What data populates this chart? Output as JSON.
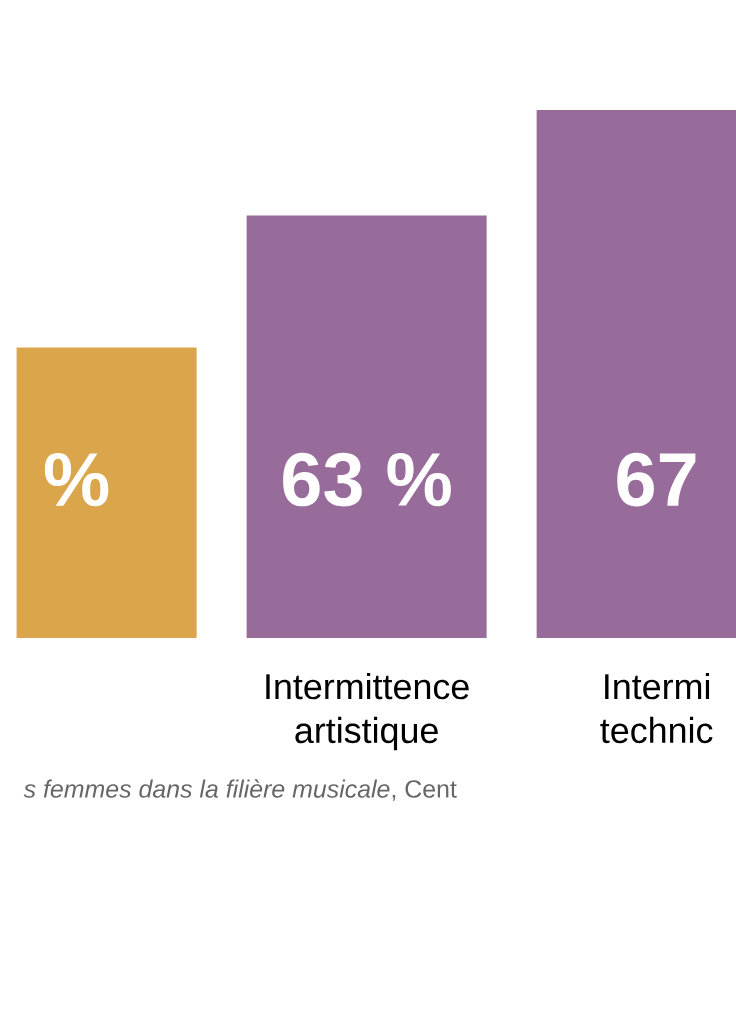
{
  "chart_data": {
    "type": "bar",
    "ylim": [
      47,
      67
    ],
    "categories": [
      null,
      "Intermittence artistique",
      "Intermi technic"
    ],
    "values": [
      58,
      63,
      67
    ],
    "colors": [
      "#dba54b",
      "#986c9a",
      "#986c9a"
    ],
    "value_labels": [
      "%",
      "63 %",
      "67"
    ],
    "annotations": [
      "*s femmes dans la filière musicale*, Cent"
    ]
  }
}
